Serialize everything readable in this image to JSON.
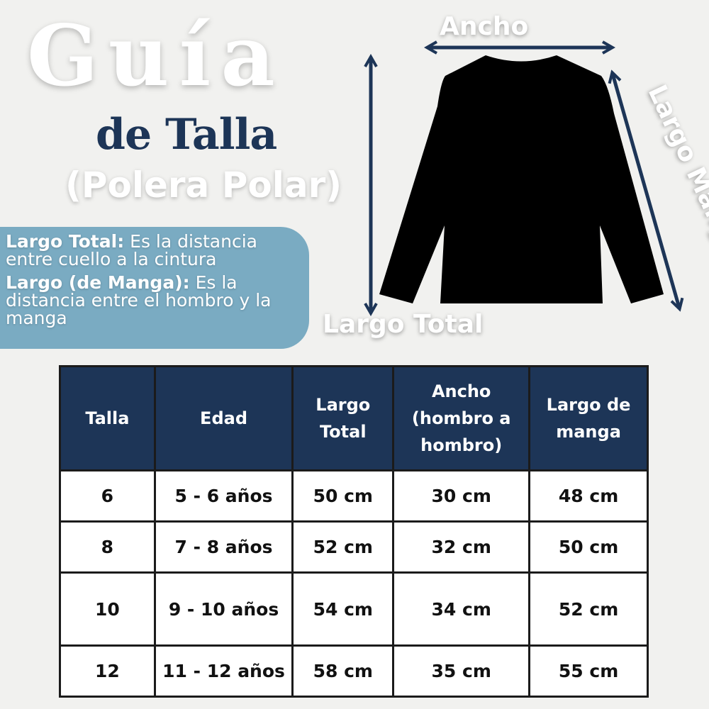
{
  "title": {
    "main": "Guía",
    "sub": "de Talla",
    "product": "(Polera Polar)"
  },
  "info": {
    "items": [
      {
        "term": "Largo Total:",
        "desc": "Es la distancia entre cuello a la cintura"
      },
      {
        "term": "Largo (de Manga):",
        "desc": "Es la distancia entre el hombro y la manga"
      }
    ]
  },
  "diagram": {
    "ancho": "Ancho",
    "largo_total": "Largo Total",
    "largo_manga": "Largo Manga",
    "arrow_color": "#1d3557",
    "shirt_color": "#000000"
  },
  "colors": {
    "navy": "#1d3557",
    "box": "#7aabc2",
    "background": "#f1f1ef"
  },
  "table": {
    "headers": [
      "Talla",
      "Edad",
      "Largo Total",
      "Ancho (hombro a hombro)",
      "Largo de manga"
    ],
    "rows": [
      [
        "6",
        "5 - 6 años",
        "50 cm",
        "30 cm",
        "48 cm"
      ],
      [
        "8",
        "7 - 8 años",
        "52 cm",
        "32 cm",
        "50 cm"
      ],
      [
        "10",
        "9 - 10 años",
        "54 cm",
        "34 cm",
        "52 cm"
      ],
      [
        "12",
        "11 - 12 años",
        "58 cm",
        "35 cm",
        "55 cm"
      ]
    ]
  }
}
